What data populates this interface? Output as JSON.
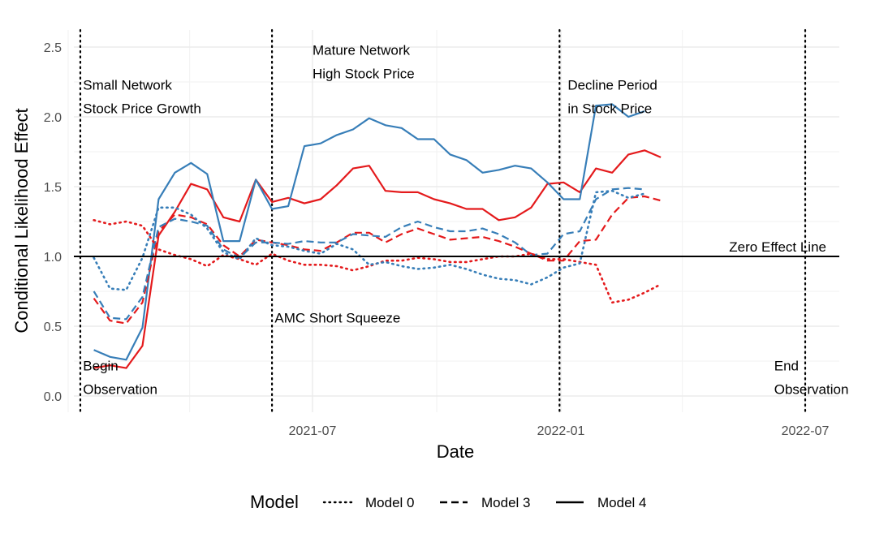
{
  "chart_data": {
    "type": "line",
    "xlabel": "Date",
    "ylabel": "Conditional Likelihood Effect",
    "xlim": [
      "2021-01-01",
      "2022-07-10"
    ],
    "ylim": [
      0,
      2.6
    ],
    "x_ticks": [
      {
        "date": "2021-07-01",
        "label": "2021-07"
      },
      {
        "date": "2022-01-01",
        "label": "2022-01"
      },
      {
        "date": "2022-07-01",
        "label": "2022-07"
      }
    ],
    "y_ticks": [
      {
        "value": 0.0,
        "label": "0.0"
      },
      {
        "value": 0.5,
        "label": "0.5"
      },
      {
        "value": 1.0,
        "label": "1.0"
      },
      {
        "value": 1.5,
        "label": "1.5"
      },
      {
        "value": 2.0,
        "label": "2.0"
      },
      {
        "value": 2.5,
        "label": "2.5"
      }
    ],
    "grid": true,
    "legend": {
      "title": "Model",
      "position": "bottom",
      "entries": [
        {
          "label": "Model 0",
          "style": "dotted"
        },
        {
          "label": "Model 3",
          "style": "dashed"
        },
        {
          "label": "Model 4",
          "style": "solid"
        }
      ]
    },
    "colors": {
      "blue": "#377eb8",
      "red": "#e41a1c"
    },
    "reference_line": {
      "value": 1.0,
      "label": "Zero Effect Line"
    },
    "vlines": [
      "2021-01-10",
      "2021-06-01",
      "2021-12-31",
      "2022-07-01"
    ],
    "annotations": [
      {
        "lines": [
          "Small Network",
          "Stock Price Growth"
        ],
        "date": "2021-01-12",
        "y": 2.06
      },
      {
        "lines": [
          "Mature Network",
          "High Stock Price"
        ],
        "date": "2021-07-01",
        "y": 2.31
      },
      {
        "lines": [
          "Decline Period",
          "in Stock Price"
        ],
        "date": "2022-01-06",
        "y": 2.06
      },
      {
        "lines": [
          "AMC Short Squeeze"
        ],
        "date": "2021-06-03",
        "y": 0.56
      },
      {
        "lines": [
          "Begin",
          "Observation"
        ],
        "date": "2021-01-12",
        "y": 0.05
      },
      {
        "lines": [
          "End",
          "Observation"
        ],
        "date": "2022-06-08",
        "y": 0.05
      }
    ],
    "x": [
      "2021-01-20",
      "2021-02-01",
      "2021-02-13",
      "2021-02-25",
      "2021-03-09",
      "2021-03-21",
      "2021-04-02",
      "2021-04-14",
      "2021-04-26",
      "2021-05-08",
      "2021-05-20",
      "2021-06-01",
      "2021-06-13",
      "2021-06-25",
      "2021-07-07",
      "2021-07-19",
      "2021-07-31",
      "2021-08-12",
      "2021-08-24",
      "2021-09-05",
      "2021-09-17",
      "2021-09-29",
      "2021-10-11",
      "2021-10-23",
      "2021-11-04",
      "2021-11-16",
      "2021-11-28",
      "2021-12-10",
      "2021-12-22",
      "2022-01-03",
      "2022-01-15",
      "2022-01-27",
      "2022-02-08",
      "2022-02-20",
      "2022-03-04",
      "2022-03-16",
      "2022-03-28",
      "2022-04-09",
      "2022-04-21",
      "2022-05-03",
      "2022-05-15",
      "2022-05-27",
      "2022-06-08",
      "2022-06-20"
    ],
    "series": [
      {
        "model": "Model 4",
        "color": "red",
        "style": "solid",
        "values": [
          0.2,
          0.22,
          0.2,
          0.36,
          1.15,
          1.32,
          1.52,
          1.48,
          1.28,
          1.25,
          1.55,
          1.39,
          1.42,
          1.38,
          1.41,
          1.51,
          1.63,
          1.65,
          1.47,
          1.46,
          1.46,
          1.41,
          1.38,
          1.34,
          1.34,
          1.26,
          1.28,
          1.35,
          1.52,
          1.53,
          1.46,
          1.63,
          1.6,
          1.73,
          1.76,
          1.71,
          null,
          null,
          null,
          null,
          null,
          null,
          null,
          null
        ]
      },
      {
        "model": "Model 4",
        "color": "blue",
        "style": "solid",
        "values": [
          0.33,
          0.28,
          0.26,
          0.49,
          1.41,
          1.6,
          1.67,
          1.59,
          1.11,
          1.11,
          1.55,
          1.34,
          1.36,
          1.79,
          1.81,
          1.87,
          1.91,
          1.99,
          1.94,
          1.92,
          1.84,
          1.84,
          1.73,
          1.69,
          1.6,
          1.62,
          1.65,
          1.63,
          1.53,
          1.41,
          1.41,
          2.08,
          2.09,
          2.0,
          2.04,
          null,
          null,
          null,
          null,
          null,
          null,
          null,
          null,
          null
        ]
      },
      {
        "model": "Model 3",
        "color": "red",
        "style": "dashed",
        "values": [
          0.7,
          0.54,
          0.52,
          0.67,
          1.18,
          1.3,
          1.28,
          1.23,
          1.08,
          1.0,
          1.12,
          1.1,
          1.08,
          1.05,
          1.04,
          1.1,
          1.17,
          1.17,
          1.1,
          1.16,
          1.2,
          1.16,
          1.12,
          1.13,
          1.14,
          1.11,
          1.07,
          1.02,
          0.97,
          0.97,
          1.11,
          1.12,
          1.3,
          1.42,
          1.43,
          1.4,
          null,
          null,
          null,
          null,
          null,
          null,
          null,
          null
        ]
      },
      {
        "model": "Model 3",
        "color": "blue",
        "style": "dashed",
        "values": [
          0.75,
          0.56,
          0.55,
          0.71,
          1.21,
          1.27,
          1.25,
          1.22,
          1.05,
          0.99,
          1.1,
          1.1,
          1.09,
          1.11,
          1.1,
          1.1,
          1.16,
          1.15,
          1.14,
          1.21,
          1.25,
          1.21,
          1.18,
          1.18,
          1.2,
          1.16,
          1.1,
          1.01,
          1.02,
          1.16,
          1.18,
          1.41,
          1.48,
          1.49,
          1.48,
          null,
          null,
          null,
          null,
          null,
          null,
          null,
          null,
          null
        ]
      },
      {
        "model": "Model 0",
        "color": "red",
        "style": "dotted",
        "values": [
          1.26,
          1.23,
          1.25,
          1.22,
          1.05,
          1.01,
          0.98,
          0.93,
          1.01,
          0.98,
          0.94,
          1.02,
          0.97,
          0.94,
          0.94,
          0.93,
          0.9,
          0.93,
          0.97,
          0.97,
          0.99,
          0.98,
          0.96,
          0.96,
          0.98,
          1.0,
          1.0,
          1.02,
          0.98,
          0.98,
          0.96,
          0.94,
          0.67,
          0.69,
          0.74,
          0.8,
          null,
          null,
          null,
          null,
          null,
          null,
          null,
          null
        ]
      },
      {
        "model": "Model 0",
        "color": "blue",
        "style": "dotted",
        "values": [
          0.99,
          0.77,
          0.76,
          0.99,
          1.35,
          1.35,
          1.3,
          1.2,
          1.03,
          0.98,
          1.13,
          1.08,
          1.07,
          1.04,
          1.02,
          1.09,
          1.05,
          0.94,
          0.96,
          0.93,
          0.91,
          0.92,
          0.94,
          0.91,
          0.87,
          0.84,
          0.83,
          0.8,
          0.85,
          0.92,
          0.95,
          1.46,
          1.47,
          1.42,
          1.45,
          null,
          null,
          null,
          null,
          null,
          null,
          null,
          null,
          null
        ]
      }
    ]
  }
}
